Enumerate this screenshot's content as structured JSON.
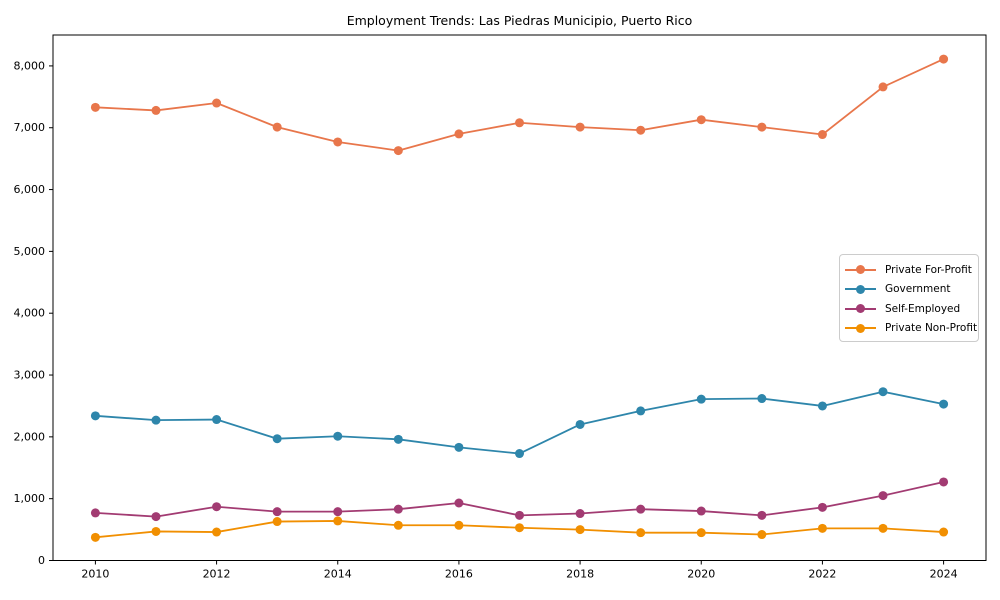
{
  "chart_data": {
    "type": "line",
    "title": "Employment Trends: Las Piedras Municipio, Puerto Rico",
    "xlabel": "",
    "ylabel": "",
    "x": [
      2010,
      2011,
      2012,
      2013,
      2014,
      2015,
      2016,
      2017,
      2018,
      2019,
      2020,
      2021,
      2022,
      2023,
      2024
    ],
    "series": [
      {
        "name": "Private For-Profit",
        "color": "#E8764B",
        "values": [
          7330,
          7280,
          7400,
          7010,
          6770,
          6630,
          6900,
          7080,
          7010,
          6960,
          7130,
          7010,
          6890,
          7660,
          8110
        ]
      },
      {
        "name": "Government",
        "color": "#2E86AB",
        "values": [
          2340,
          2270,
          2280,
          1970,
          2010,
          1960,
          1830,
          1730,
          2200,
          2420,
          2610,
          2620,
          2500,
          2730,
          2530
        ]
      },
      {
        "name": "Self-Employed",
        "color": "#A23B72",
        "values": [
          770,
          710,
          870,
          790,
          790,
          830,
          930,
          730,
          760,
          830,
          800,
          730,
          860,
          1050,
          1270
        ]
      },
      {
        "name": "Private Non-Profit",
        "color": "#F18F01",
        "values": [
          375,
          470,
          460,
          630,
          640,
          570,
          570,
          530,
          500,
          450,
          450,
          420,
          520,
          520,
          460
        ]
      }
    ],
    "xlim": [
      2009.3,
      2024.7
    ],
    "ylim": [
      0,
      8500
    ],
    "xticks": [
      2010,
      2012,
      2014,
      2016,
      2018,
      2020,
      2022,
      2024
    ],
    "yticks": [
      0,
      1000,
      2000,
      3000,
      4000,
      5000,
      6000,
      7000,
      8000
    ],
    "ytick_labels": [
      "0",
      "1,000",
      "2,000",
      "3,000",
      "4,000",
      "5,000",
      "6,000",
      "7,000",
      "8,000"
    ],
    "grid": false,
    "legend_position": "center-right",
    "marker": "circle"
  }
}
